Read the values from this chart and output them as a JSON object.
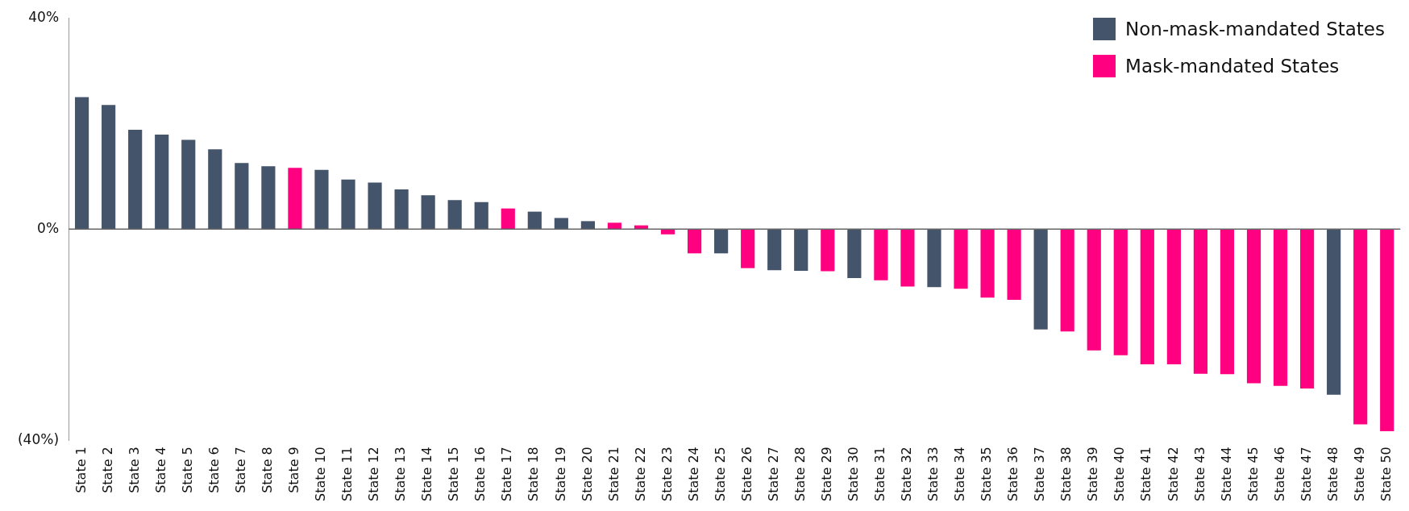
{
  "chart_data": {
    "type": "bar",
    "categories": [
      "State 1",
      "State 2",
      "State 3",
      "State 4",
      "State 5",
      "State 6",
      "State 7",
      "State 8",
      "State 9",
      "State 10",
      "State 11",
      "State 12",
      "State 13",
      "State 14",
      "State 15",
      "State 16",
      "State 17",
      "State 18",
      "State 19",
      "State 20",
      "State 21",
      "State 22",
      "State 23",
      "State 24",
      "State 25",
      "State 26",
      "State 27",
      "State 28",
      "State 29",
      "State 30",
      "State 31",
      "State 32",
      "State 33",
      "State 34",
      "State 35",
      "State 36",
      "State 37",
      "State 38",
      "State 39",
      "State 40",
      "State 41",
      "State 42",
      "State 43",
      "State 44",
      "State 45",
      "State 46",
      "State 47",
      "State 48",
      "State 49",
      "State 50"
    ],
    "series": [
      {
        "name": "Non-mask-mandated States",
        "color": "#44546a",
        "values": [
          25.0,
          23.5,
          18.8,
          17.9,
          16.9,
          15.1,
          12.5,
          11.9,
          null,
          11.2,
          9.4,
          8.8,
          7.5,
          6.4,
          5.5,
          5.1,
          null,
          3.3,
          2.1,
          1.5,
          null,
          null,
          null,
          null,
          -4.6,
          null,
          -7.8,
          -7.9,
          null,
          -9.3,
          null,
          null,
          -11.0,
          null,
          null,
          null,
          -19.0,
          null,
          null,
          null,
          null,
          null,
          null,
          null,
          null,
          null,
          null,
          -31.4,
          null,
          null
        ]
      },
      {
        "name": "Mask-mandated States",
        "color": "#ff0080",
        "values": [
          null,
          null,
          null,
          null,
          null,
          null,
          null,
          null,
          11.6,
          null,
          null,
          null,
          null,
          null,
          null,
          null,
          3.9,
          null,
          null,
          null,
          1.2,
          0.7,
          -1.0,
          -4.6,
          null,
          -7.4,
          null,
          null,
          -8.0,
          null,
          -9.7,
          -10.9,
          null,
          -11.3,
          -13.0,
          -13.4,
          null,
          -19.4,
          -23.0,
          -23.9,
          -25.6,
          -25.6,
          -27.4,
          -27.5,
          -29.2,
          -29.7,
          -30.2,
          null,
          -37.0,
          -38.3
        ]
      }
    ],
    "ylim": [
      -40,
      40
    ],
    "yticks": [
      {
        "value": -40,
        "label": "(40%)"
      },
      {
        "value": 0,
        "label": "0%"
      },
      {
        "value": 40,
        "label": "40%"
      }
    ],
    "legend": "top right"
  }
}
